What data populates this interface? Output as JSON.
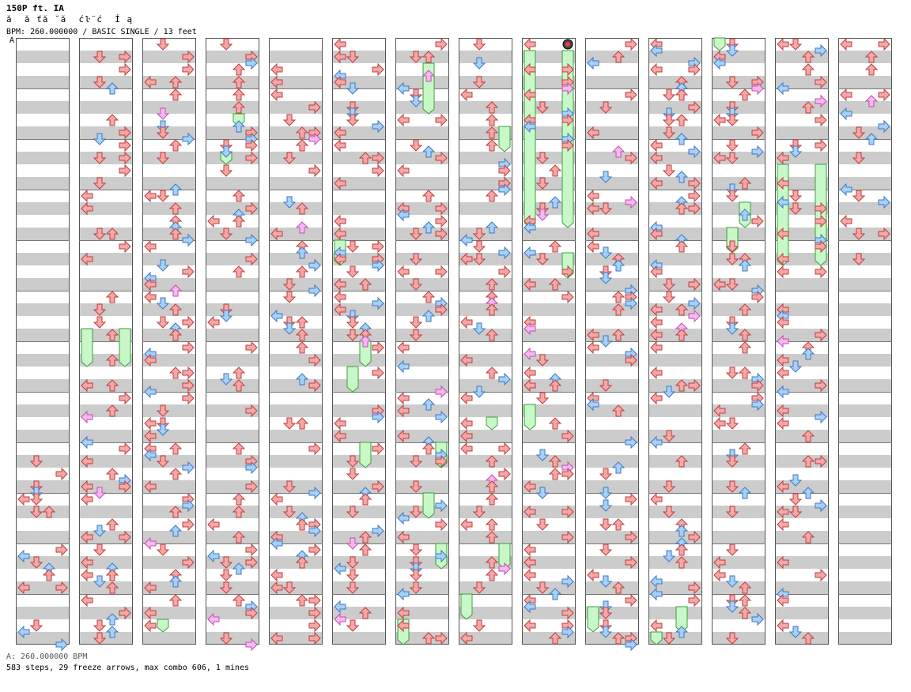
{
  "header": {
    "title": "150P ft. IA",
    "subtitle": "ă  ă ťă ˘ă  ćŀ¨ć  Í ą",
    "info": "BPM: 260.000000 / BASIC SINGLE / 13 feet"
  },
  "bpm_marker": "A",
  "footer": {
    "bpm_line": "A: 260.000000 BPM",
    "stats_line": "583 steps, 29 freeze arrows, max combo 606, 1 mines"
  },
  "chart_data": {
    "type": "step-chart",
    "lanes": [
      "left",
      "down",
      "up",
      "right"
    ],
    "columns": 14,
    "measures_per_column": 12,
    "colors": {
      "quarter_arrow": "#f4a8a8",
      "quarter_stroke": "#c03c3c",
      "eighth_arrow": "#a8d0f8",
      "eighth_stroke": "#3c78c0",
      "sixteenth_arrow": "#f8b8f0",
      "sixteenth_stroke": "#c050b0",
      "freeze_fill": "#c8f8c8",
      "freeze_stroke": "#3c9c3c",
      "band": "#cccccc",
      "border": "#555555"
    },
    "freezes": [
      {
        "col": 1,
        "lane": 0,
        "start": 5.75,
        "end": 6.5
      },
      {
        "col": 1,
        "lane": 3,
        "start": 5.75,
        "end": 6.5
      },
      {
        "col": 3,
        "lane": 2,
        "start": 1.5,
        "end": 1.75
      },
      {
        "col": 3,
        "lane": 1,
        "start": 2.25,
        "end": 2.5
      },
      {
        "col": 5,
        "lane": 0,
        "start": 4,
        "end": 4.5
      },
      {
        "col": 5,
        "lane": 2,
        "start": 6,
        "end": 6.5
      },
      {
        "col": 5,
        "lane": 1,
        "start": 6.5,
        "end": 7
      },
      {
        "col": 5,
        "lane": 2,
        "start": 8,
        "end": 8.5
      },
      {
        "col": 6,
        "lane": 2,
        "start": 0.5,
        "end": 1.5
      },
      {
        "col": 6,
        "lane": 3,
        "start": 8,
        "end": 8.5
      },
      {
        "col": 6,
        "lane": 2,
        "start": 9,
        "end": 9.5
      },
      {
        "col": 6,
        "lane": 3,
        "start": 10,
        "end": 10.5
      },
      {
        "col": 6,
        "lane": 0,
        "start": 11.5,
        "end": 12
      },
      {
        "col": 7,
        "lane": 3,
        "start": 1.75,
        "end": 2.25
      },
      {
        "col": 7,
        "lane": 2,
        "start": 7.5,
        "end": 7.75
      },
      {
        "col": 7,
        "lane": 3,
        "start": 10,
        "end": 10.5
      },
      {
        "col": 7,
        "lane": 0,
        "start": 11,
        "end": 11.5
      },
      {
        "col": 8,
        "lane": 0,
        "start": 0.25,
        "end": 3.75
      },
      {
        "col": 8,
        "lane": 3,
        "start": 0.25,
        "end": 3.75
      },
      {
        "col": 8,
        "lane": 3,
        "start": 4.25,
        "end": 4.75
      },
      {
        "col": 8,
        "lane": 0,
        "start": 7.25,
        "end": 7.75
      },
      {
        "col": 9,
        "lane": 0,
        "start": 11.25,
        "end": 11.75
      },
      {
        "col": 10,
        "lane": 0,
        "start": 11.75,
        "end": 12
      },
      {
        "col": 10,
        "lane": 2,
        "start": 11.25,
        "end": 11.75
      },
      {
        "col": 11,
        "lane": 0,
        "start": 0,
        "end": 0.25
      },
      {
        "col": 11,
        "lane": 2,
        "start": 3.25,
        "end": 3.75
      },
      {
        "col": 11,
        "lane": 1,
        "start": 3.75,
        "end": 4.25
      },
      {
        "col": 12,
        "lane": 0,
        "start": 2.5,
        "end": 4.5
      },
      {
        "col": 12,
        "lane": 3,
        "start": 2.5,
        "end": 4.5
      },
      {
        "col": 2,
        "lane": 1,
        "start": 11.5,
        "end": 11.75
      }
    ],
    "mines": [
      {
        "col": 8,
        "lane": 3,
        "pos": 0.125
      }
    ]
  }
}
